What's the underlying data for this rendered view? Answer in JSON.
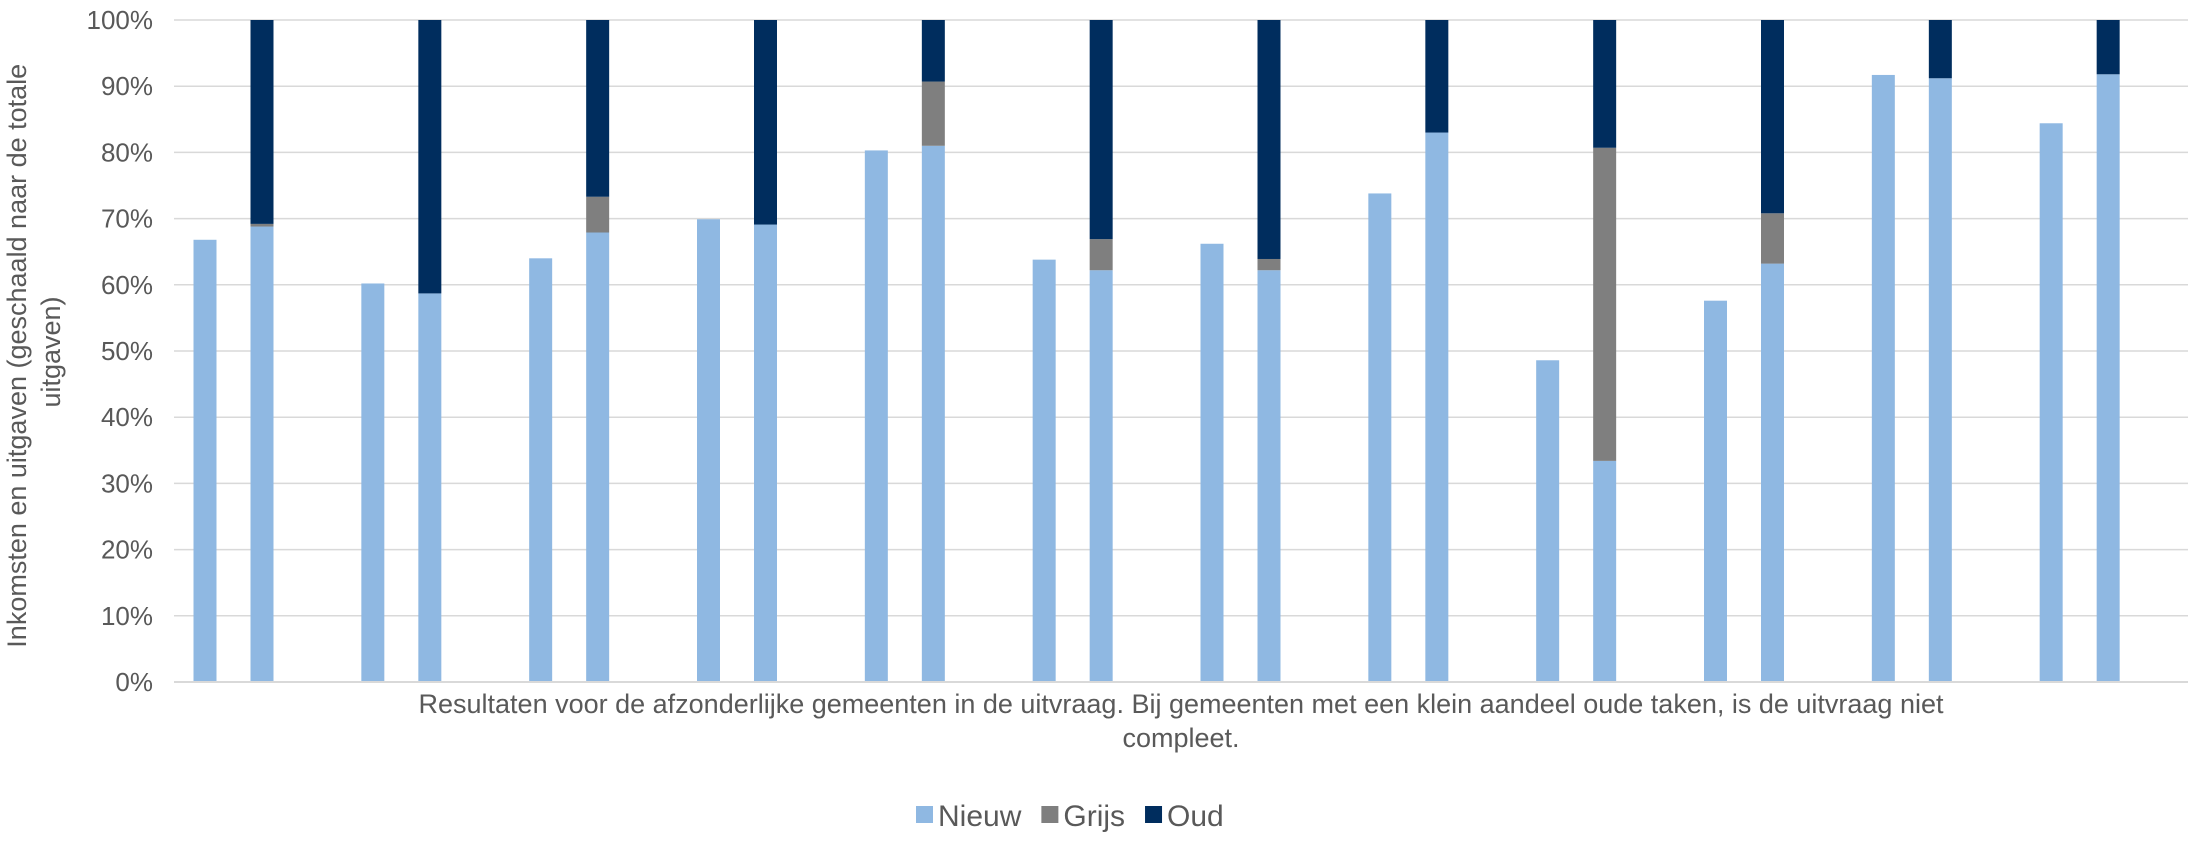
{
  "chart_data": {
    "type": "bar",
    "stacked": true,
    "title": "",
    "xlabel_lines": [
      "Resultaten voor de afzonderlijke gemeenten in de uitvraag. Bij gemeenten met een klein aandeel oude taken, is de uitvraag niet",
      "compleet."
    ],
    "ylabel_lines": [
      "Inkomsten en uitgaven (geschaald naar de totale",
      "uitgaven)"
    ],
    "ylim": [
      0,
      100
    ],
    "ytick_values": [
      0,
      10,
      20,
      30,
      40,
      50,
      60,
      70,
      80,
      90,
      100
    ],
    "ytick_labels": [
      "0%",
      "10%",
      "20%",
      "30%",
      "40%",
      "50%",
      "60%",
      "70%",
      "80%",
      "90%",
      "100%"
    ],
    "grid": true,
    "legend_position": "bottom-center",
    "series": [
      {
        "name": "Nieuw",
        "color": "#8fb8e2",
        "values": [
          66.8,
          68.8,
          60.2,
          58.7,
          64.0,
          67.9,
          69.9,
          69.1,
          80.3,
          81.0,
          63.8,
          62.2,
          66.2,
          62.2,
          73.8,
          83.0,
          48.6,
          33.4,
          57.6,
          63.2,
          91.7,
          91.2,
          84.4,
          91.8
        ]
      },
      {
        "name": "Grijs",
        "color": "#7f7f7f",
        "values": [
          0,
          0.4,
          0,
          0,
          0,
          5.4,
          0,
          0,
          0,
          9.7,
          0,
          4.7,
          0,
          1.7,
          0,
          0,
          0,
          47.3,
          0,
          7.6,
          0,
          0,
          0,
          0
        ]
      },
      {
        "name": "Oud",
        "color": "#002d5e",
        "values": [
          0,
          30.8,
          0,
          41.3,
          0,
          26.7,
          0,
          30.9,
          0,
          9.3,
          0,
          33.1,
          0,
          36.1,
          0,
          17.0,
          0,
          19.3,
          0,
          29.2,
          0,
          8.8,
          0,
          8.2
        ]
      }
    ]
  }
}
